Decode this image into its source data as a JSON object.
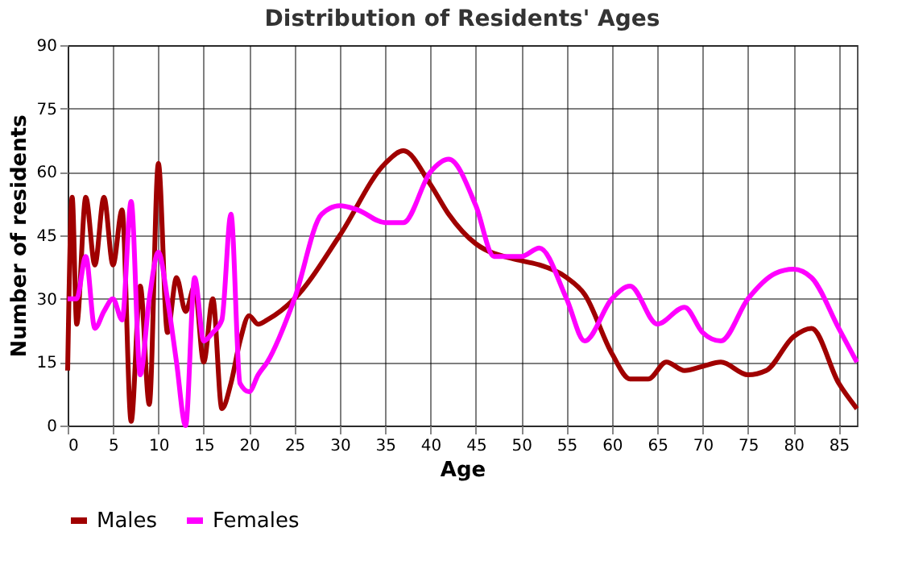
{
  "chart_data": {
    "type": "line",
    "title": "Distribution of Residents' Ages",
    "xlabel": "Age",
    "ylabel": "Number of residents",
    "xlim": [
      0,
      87
    ],
    "xticks": [
      0,
      5,
      10,
      15,
      20,
      25,
      30,
      35,
      40,
      45,
      50,
      55,
      60,
      65,
      70,
      75,
      80,
      85
    ],
    "ylim": [
      0,
      90
    ],
    "yticks": [
      0,
      15,
      30,
      45,
      60,
      75,
      90
    ],
    "grid": true,
    "legend": "bottom",
    "marker": "none",
    "line_style": "solid",
    "series": [
      {
        "name": "Males",
        "color": "#a00000",
        "x": [
          0,
          0.5,
          1,
          2,
          3,
          4,
          5,
          6,
          7,
          8,
          9,
          10,
          11,
          12,
          13,
          14,
          15,
          16,
          17,
          18,
          19,
          20,
          21,
          22,
          25,
          30,
          35,
          37,
          40,
          42,
          45,
          50,
          52,
          55,
          57,
          60,
          62,
          64,
          66,
          68,
          70,
          72,
          75,
          77,
          80,
          82,
          85,
          87
        ],
        "values": [
          13,
          54,
          24,
          54,
          38,
          54,
          38,
          51,
          1,
          33,
          5,
          62,
          22,
          35,
          27,
          33,
          15,
          30,
          4,
          10,
          20,
          26,
          24,
          25,
          30,
          45,
          62,
          65,
          57,
          50,
          43,
          39,
          38,
          35,
          31,
          17,
          11,
          11,
          15,
          13,
          14,
          15,
          12,
          13,
          21,
          23,
          10,
          4
        ]
      },
      {
        "name": "Females",
        "color": "#ff00ff",
        "x": [
          0,
          1,
          2,
          3,
          4,
          5,
          6,
          7,
          8,
          9,
          10,
          11,
          12,
          13,
          14,
          15,
          16,
          17,
          18,
          19,
          20,
          21,
          22,
          25,
          28,
          30,
          32,
          35,
          37,
          40,
          42,
          45,
          47,
          50,
          52,
          55,
          57,
          60,
          62,
          65,
          68,
          70,
          72,
          75,
          78,
          80,
          82,
          85,
          87
        ],
        "values": [
          30,
          30,
          40,
          23,
          27,
          30,
          25,
          53,
          12,
          30,
          41,
          30,
          15,
          0,
          35,
          20,
          22,
          25,
          50,
          10,
          8,
          12,
          15,
          30,
          50,
          52,
          51,
          48,
          48,
          60,
          63,
          52,
          40,
          40,
          42,
          30,
          20,
          30,
          33,
          24,
          28,
          22,
          20,
          30,
          36,
          37,
          35,
          23,
          15
        ]
      }
    ]
  }
}
